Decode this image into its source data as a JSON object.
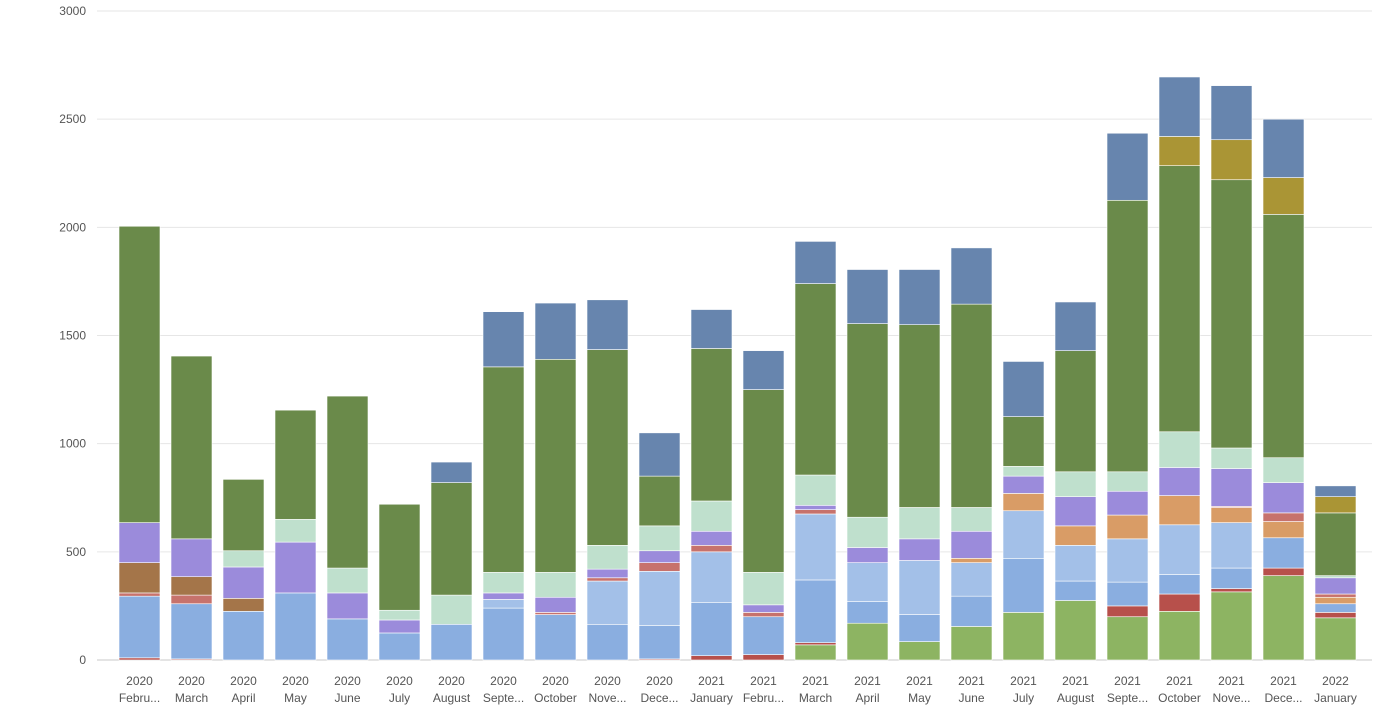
{
  "chart_data": {
    "type": "bar",
    "stacked": true,
    "grid": true,
    "legend": "none",
    "ylim": [
      0,
      3000
    ],
    "yticks": [
      0,
      500,
      1000,
      1500,
      2000,
      2500,
      3000
    ],
    "categories": [
      {
        "year": "2020",
        "month": "Febru..."
      },
      {
        "year": "2020",
        "month": "March"
      },
      {
        "year": "2020",
        "month": "April"
      },
      {
        "year": "2020",
        "month": "May"
      },
      {
        "year": "2020",
        "month": "June"
      },
      {
        "year": "2020",
        "month": "July"
      },
      {
        "year": "2020",
        "month": "August"
      },
      {
        "year": "2020",
        "month": "Septe..."
      },
      {
        "year": "2020",
        "month": "October"
      },
      {
        "year": "2020",
        "month": "Nove..."
      },
      {
        "year": "2020",
        "month": "Dece..."
      },
      {
        "year": "2021",
        "month": "January"
      },
      {
        "year": "2021",
        "month": "Febru..."
      },
      {
        "year": "2021",
        "month": "March"
      },
      {
        "year": "2021",
        "month": "April"
      },
      {
        "year": "2021",
        "month": "May"
      },
      {
        "year": "2021",
        "month": "June"
      },
      {
        "year": "2021",
        "month": "July"
      },
      {
        "year": "2021",
        "month": "August"
      },
      {
        "year": "2021",
        "month": "Septe..."
      },
      {
        "year": "2021",
        "month": "October"
      },
      {
        "year": "2021",
        "month": "Nove..."
      },
      {
        "year": "2021",
        "month": "Dece..."
      },
      {
        "year": "2022",
        "month": "January"
      }
    ],
    "series": [
      {
        "color": "#8db462",
        "values": [
          0,
          0,
          0,
          0,
          0,
          0,
          0,
          0,
          0,
          0,
          0,
          0,
          0,
          70,
          170,
          85,
          155,
          220,
          275,
          200,
          225,
          315,
          390,
          195
        ]
      },
      {
        "color": "#b7504b",
        "values": [
          10,
          5,
          0,
          0,
          0,
          0,
          0,
          0,
          0,
          0,
          5,
          20,
          25,
          10,
          0,
          0,
          0,
          0,
          0,
          50,
          80,
          15,
          35,
          25
        ]
      },
      {
        "color": "#8aaee0",
        "values": [
          285,
          255,
          225,
          310,
          190,
          125,
          165,
          240,
          210,
          165,
          155,
          245,
          175,
          290,
          100,
          125,
          140,
          250,
          90,
          110,
          90,
          95,
          140,
          40
        ]
      },
      {
        "color": "#a3c0e8",
        "values": [
          0,
          0,
          0,
          0,
          0,
          0,
          0,
          40,
          0,
          200,
          250,
          235,
          0,
          305,
          180,
          250,
          155,
          220,
          165,
          200,
          230,
          210,
          0,
          0
        ]
      },
      {
        "color": "#d99c66",
        "values": [
          0,
          0,
          0,
          0,
          0,
          0,
          0,
          0,
          0,
          0,
          0,
          0,
          0,
          0,
          0,
          0,
          20,
          80,
          90,
          110,
          135,
          70,
          75,
          30
        ]
      },
      {
        "color": "#c7726c",
        "values": [
          15,
          40,
          0,
          0,
          0,
          0,
          0,
          0,
          10,
          15,
          40,
          30,
          20,
          20,
          0,
          0,
          0,
          0,
          0,
          0,
          0,
          5,
          40,
          15
        ]
      },
      {
        "color": "#a47549",
        "values": [
          140,
          85,
          60,
          0,
          0,
          0,
          0,
          0,
          0,
          0,
          0,
          0,
          0,
          0,
          0,
          0,
          0,
          0,
          0,
          0,
          0,
          0,
          0,
          0
        ]
      },
      {
        "color": "#9b8bdb",
        "values": [
          185,
          175,
          145,
          235,
          120,
          60,
          0,
          30,
          70,
          40,
          55,
          65,
          35,
          20,
          70,
          100,
          125,
          80,
          135,
          110,
          130,
          175,
          140,
          75
        ]
      },
      {
        "color": "#bfe0cd",
        "values": [
          0,
          0,
          75,
          105,
          115,
          45,
          135,
          95,
          115,
          110,
          115,
          140,
          150,
          140,
          140,
          145,
          110,
          45,
          115,
          90,
          165,
          95,
          115,
          10
        ]
      },
      {
        "color": "#6a8a4a",
        "values": [
          1370,
          845,
          330,
          505,
          795,
          490,
          520,
          950,
          985,
          905,
          230,
          705,
          845,
          885,
          895,
          845,
          940,
          230,
          560,
          1255,
          1230,
          1240,
          1125,
          290
        ]
      },
      {
        "color": "#aa9535",
        "values": [
          0,
          0,
          0,
          0,
          0,
          0,
          0,
          0,
          0,
          0,
          0,
          0,
          0,
          0,
          0,
          0,
          0,
          0,
          0,
          0,
          135,
          185,
          170,
          75
        ]
      },
      {
        "color": "#6785ae",
        "values": [
          0,
          0,
          0,
          0,
          0,
          0,
          95,
          255,
          260,
          230,
          200,
          180,
          180,
          195,
          250,
          255,
          260,
          255,
          225,
          310,
          275,
          250,
          270,
          50
        ]
      }
    ]
  }
}
